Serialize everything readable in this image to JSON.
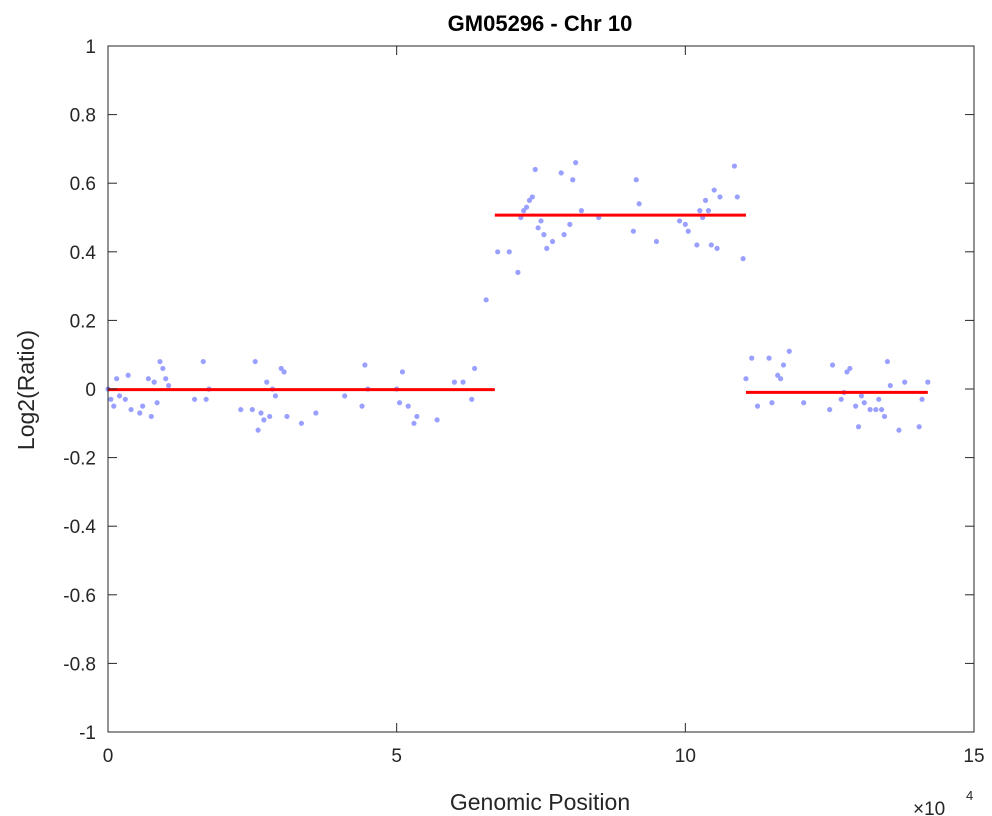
{
  "chart_data": {
    "type": "scatter",
    "title": "GM05296 - Chr 10",
    "xlabel": "Genomic Position",
    "ylabel": "Log2(Ratio)",
    "x_exponent_label": "×10",
    "x_exponent": "4",
    "xlim": [
      0,
      15
    ],
    "ylim": [
      -1,
      1
    ],
    "x_ticks": [
      0,
      5,
      10,
      15
    ],
    "x_tick_labels": [
      "0",
      "5",
      "10",
      "15"
    ],
    "y_ticks": [
      -1,
      -0.8,
      -0.6,
      -0.4,
      -0.2,
      0,
      0.2,
      0.4,
      0.6,
      0.8,
      1
    ],
    "y_tick_labels": [
      "-1",
      "-0.8",
      "-0.6",
      "-0.4",
      "-0.2",
      "0",
      "0.2",
      "0.4",
      "0.6",
      "0.8",
      "1"
    ],
    "grid": false,
    "colors": {
      "points": "#9aa0ff",
      "segments": "#ff0000",
      "axis": "#262626"
    },
    "series": [
      {
        "kind": "points",
        "x": [
          0.0,
          0.05,
          0.1,
          0.15,
          0.2,
          0.3,
          0.35,
          0.4,
          0.55,
          0.6,
          0.7,
          0.75,
          0.8,
          0.85,
          0.9,
          0.95,
          1.0,
          1.05,
          1.5,
          1.65,
          1.7,
          1.75,
          2.3,
          2.5,
          2.55,
          2.6,
          2.65,
          2.7,
          2.75,
          2.8,
          2.85,
          2.9,
          3.0,
          3.05,
          3.1,
          3.35,
          3.6,
          4.1,
          4.4,
          4.45,
          4.5,
          5.0,
          5.05,
          5.1,
          5.2,
          5.3,
          5.35,
          5.7,
          6.0,
          6.15,
          6.3,
          6.35,
          6.55,
          6.75,
          6.95,
          7.1,
          7.15,
          7.2,
          7.25,
          7.3,
          7.35,
          7.4,
          7.45,
          7.5,
          7.55,
          7.6,
          7.7,
          7.85,
          7.9,
          8.0,
          8.05,
          8.1,
          8.2,
          8.5,
          9.1,
          9.15,
          9.2,
          9.5,
          9.9,
          10.0,
          10.05,
          10.2,
          10.25,
          10.3,
          10.35,
          10.4,
          10.45,
          10.5,
          10.55,
          10.6,
          10.85,
          10.9,
          11.0,
          11.05,
          11.15,
          11.25,
          11.45,
          11.5,
          11.6,
          11.65,
          11.7,
          11.8,
          12.05,
          12.5,
          12.55,
          12.7,
          12.75,
          12.8,
          12.85,
          12.95,
          13.0,
          13.05,
          13.1,
          13.2,
          13.3,
          13.35,
          13.4,
          13.45,
          13.5,
          13.55,
          13.7,
          13.8,
          14.05,
          14.1,
          14.2
        ],
        "y": [
          0.0,
          -0.03,
          -0.05,
          0.03,
          -0.02,
          -0.03,
          0.04,
          -0.06,
          -0.07,
          -0.05,
          0.03,
          -0.08,
          0.02,
          -0.04,
          0.08,
          0.06,
          0.03,
          0.01,
          -0.03,
          0.08,
          -0.03,
          0.0,
          -0.06,
          -0.06,
          0.08,
          -0.12,
          -0.07,
          -0.09,
          0.02,
          -0.08,
          0.0,
          -0.02,
          0.06,
          0.05,
          -0.08,
          -0.1,
          -0.07,
          -0.02,
          -0.05,
          0.07,
          0.0,
          0.0,
          -0.04,
          0.05,
          -0.05,
          -0.1,
          -0.08,
          -0.09,
          0.02,
          0.02,
          -0.03,
          0.06,
          0.26,
          0.4,
          0.4,
          0.34,
          0.5,
          0.52,
          0.53,
          0.55,
          0.56,
          0.64,
          0.47,
          0.49,
          0.45,
          0.41,
          0.43,
          0.63,
          0.45,
          0.48,
          0.61,
          0.66,
          0.52,
          0.5,
          0.46,
          0.61,
          0.54,
          0.43,
          0.49,
          0.48,
          0.46,
          0.42,
          0.52,
          0.5,
          0.55,
          0.52,
          0.42,
          0.58,
          0.41,
          0.56,
          0.65,
          0.56,
          0.38,
          0.03,
          0.09,
          -0.05,
          0.09,
          -0.04,
          0.04,
          0.03,
          0.07,
          0.11,
          -0.04,
          -0.06,
          0.07,
          -0.03,
          -0.01,
          0.05,
          0.06,
          -0.05,
          -0.11,
          -0.02,
          -0.04,
          -0.06,
          -0.06,
          -0.03,
          -0.06,
          -0.08,
          0.08,
          0.01,
          -0.12,
          0.02,
          -0.11,
          -0.03,
          0.02
        ]
      },
      {
        "kind": "segments",
        "segments": [
          {
            "x0": 0.0,
            "x1": 6.7,
            "y": -0.002
          },
          {
            "x0": 6.7,
            "x1": 11.05,
            "y": 0.507
          },
          {
            "x0": 11.05,
            "x1": 14.2,
            "y": -0.01
          }
        ]
      }
    ]
  }
}
